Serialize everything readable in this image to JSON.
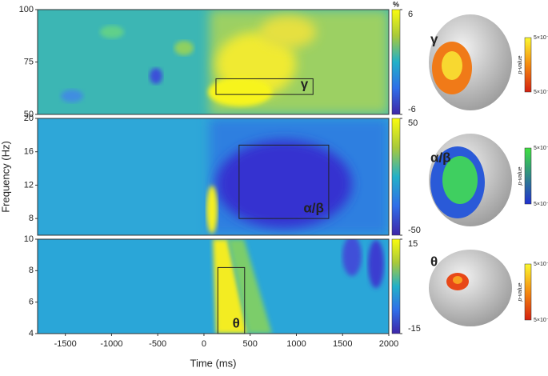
{
  "chart_data": [
    {
      "type": "heatmap",
      "label": "γ",
      "xlim": [
        -1800,
        2000
      ],
      "ylim": [
        50,
        100
      ],
      "yticks": [
        50,
        75,
        100
      ],
      "colorbar": {
        "label": "%",
        "lim": [
          -6,
          6
        ],
        "ticks": [
          6,
          -6
        ]
      },
      "box": {
        "x": [
          130,
          1180
        ],
        "y": [
          59.5,
          67
        ]
      },
      "brain": {
        "p_label": "p-value",
        "p_ticks": [
          "5×10⁻⁶",
          "5×10⁻⁴"
        ]
      }
    },
    {
      "type": "heatmap",
      "label": "α/β",
      "xlim": [
        -1800,
        2000
      ],
      "ylim": [
        6,
        20
      ],
      "yticks": [
        8,
        12,
        16,
        20
      ],
      "ylabel": "Frequency (Hz)",
      "colorbar": {
        "lim": [
          -50,
          50
        ],
        "ticks": [
          50,
          -50
        ]
      },
      "box": {
        "x": [
          380,
          1350
        ],
        "y": [
          8,
          16.8
        ]
      },
      "brain": {
        "p_label": "p-value",
        "p_ticks": [
          "5×10⁻¹⁹",
          "5×10⁻¹³"
        ]
      }
    },
    {
      "type": "heatmap",
      "label": "θ",
      "xlim": [
        -1800,
        2000
      ],
      "ylim": [
        4,
        10
      ],
      "yticks": [
        4,
        6,
        8,
        10
      ],
      "xticks": [
        -1500,
        -1000,
        -500,
        0,
        500,
        1000,
        1500,
        2000
      ],
      "xlabel": "Time (ms)",
      "colorbar": {
        "lim": [
          -15,
          15
        ],
        "ticks": [
          15,
          -15
        ]
      },
      "box": {
        "x": [
          150,
          440
        ],
        "y": [
          4,
          8.2
        ]
      },
      "brain": {
        "p_label": "p-value",
        "p_ticks": [
          "5×10⁻¹⁴",
          "5×10⁻¹⁰"
        ]
      }
    }
  ]
}
